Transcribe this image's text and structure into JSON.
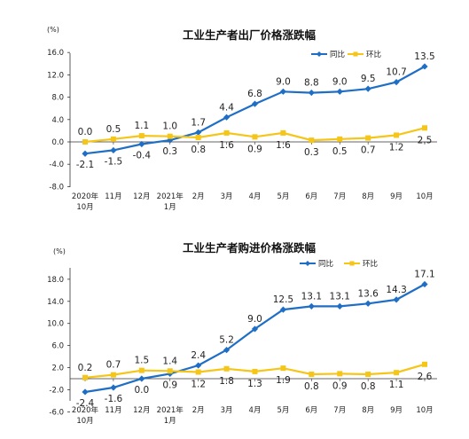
{
  "chart_data": [
    {
      "type": "line",
      "title": "工业生产者出厂价格涨跌幅",
      "ylabel": "(%)",
      "ylim": [
        -8.0,
        16.0
      ],
      "yticks": [
        "-8.0",
        "-4.0",
        "0.0",
        "4.0",
        "8.0",
        "12.0",
        "16.0"
      ],
      "categories": [
        [
          "2020年",
          "10月"
        ],
        [
          "11月"
        ],
        [
          "12月"
        ],
        [
          "2021年",
          "1月"
        ],
        [
          "2月"
        ],
        [
          "3月"
        ],
        [
          "4月"
        ],
        [
          "5月"
        ],
        [
          "6月"
        ],
        [
          "7月"
        ],
        [
          "8月"
        ],
        [
          "9月"
        ],
        [
          "10月"
        ]
      ],
      "series": [
        {
          "name": "同比",
          "color": "#1f6ec6",
          "values": [
            -2.1,
            -1.5,
            -0.4,
            0.3,
            1.7,
            4.4,
            6.8,
            9.0,
            8.8,
            9.0,
            9.5,
            10.7,
            13.5
          ],
          "labels": [
            "-2.1",
            "-1.5",
            "-0.4",
            "0.3",
            "1.7",
            "4.4",
            "6.8",
            "9.0",
            "8.8",
            "9.0",
            "9.5",
            "10.7",
            "13.5"
          ]
        },
        {
          "name": "环比",
          "color": "#f5c518",
          "values": [
            0.0,
            0.5,
            1.1,
            1.0,
            0.8,
            1.6,
            0.9,
            1.6,
            0.3,
            0.5,
            0.7,
            1.2,
            2.5
          ],
          "labels": [
            "0.0",
            "0.5",
            "1.1",
            "1.0",
            "0.8",
            "1.6",
            "0.9",
            "1.6",
            "0.3",
            "0.5",
            "0.7",
            "1.2",
            "2.5"
          ]
        }
      ],
      "legend": "top-right",
      "grid": false
    },
    {
      "type": "line",
      "title": "工业生产者购进价格涨跌幅",
      "ylabel": "(%)",
      "ylim": [
        -6.0,
        18.0
      ],
      "yticks": [
        "-6.0",
        "-2.0",
        "2.0",
        "6.0",
        "10.0",
        "14.0",
        "18.0"
      ],
      "categories": [
        [
          "2020年",
          "10月"
        ],
        [
          "11月"
        ],
        [
          "12月"
        ],
        [
          "2021年",
          "1月"
        ],
        [
          "2月"
        ],
        [
          "3月"
        ],
        [
          "4月"
        ],
        [
          "5月"
        ],
        [
          "6月"
        ],
        [
          "7月"
        ],
        [
          "8月"
        ],
        [
          "9月"
        ],
        [
          "10月"
        ]
      ],
      "series": [
        {
          "name": "同比",
          "color": "#1f6ec6",
          "values": [
            -2.4,
            -1.6,
            0.0,
            0.9,
            2.4,
            5.2,
            9.0,
            12.5,
            13.1,
            13.1,
            13.6,
            14.3,
            17.1
          ],
          "labels": [
            "-2.4",
            "-1.6",
            "0.0",
            "0.9",
            "2.4",
            "5.2",
            "9.0",
            "12.5",
            "13.1",
            "13.1",
            "13.6",
            "14.3",
            "17.1"
          ]
        },
        {
          "name": "环比",
          "color": "#f5c518",
          "values": [
            0.2,
            0.7,
            1.5,
            1.4,
            1.2,
            1.8,
            1.3,
            1.9,
            0.8,
            0.9,
            0.8,
            1.1,
            2.6
          ],
          "labels": [
            "0.2",
            "0.7",
            "1.5",
            "1.4",
            "1.2",
            "1.8",
            "1.3",
            "1.9",
            "0.8",
            "0.9",
            "0.8",
            "1.1",
            "2.6"
          ]
        }
      ],
      "legend": "top-right",
      "grid": false
    }
  ]
}
